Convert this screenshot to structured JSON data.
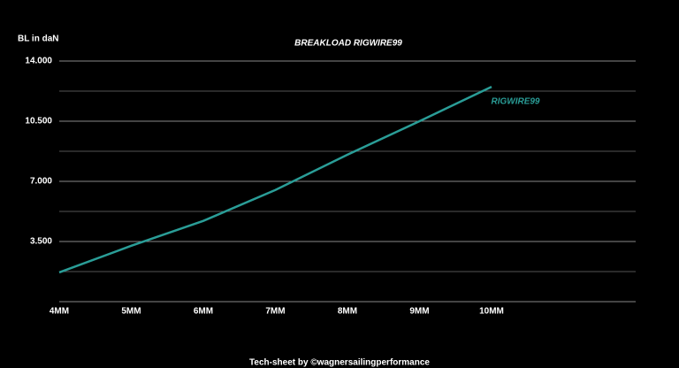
{
  "chart_data": {
    "type": "line",
    "title": "BREAKLOAD RIGWIRE99",
    "y_label": "BL in daN",
    "annotation": "RIGWIRE99",
    "footer": "Tech-sheet by ©wagnersailingperformance",
    "categories": [
      "4MM",
      "5MM",
      "6MM",
      "7MM",
      "8MM",
      "9MM",
      "10MM",
      null,
      null
    ],
    "series": [
      {
        "name": "RIGWIRE99",
        "color": "#2a9d97",
        "values": [
          1700,
          3250,
          4700,
          6500,
          8550,
          10500,
          12500,
          null,
          null
        ]
      }
    ],
    "ylim": [
      0,
      14000
    ],
    "yticks": [
      {
        "value": 3500,
        "label": "3.500"
      },
      {
        "value": 7000,
        "label": "7.000"
      },
      {
        "value": 10500,
        "label": "10.500"
      },
      {
        "value": 14000,
        "label": "14.000"
      }
    ],
    "minor_grid": [
      1750,
      5250,
      8750,
      12250
    ],
    "grid": true
  }
}
